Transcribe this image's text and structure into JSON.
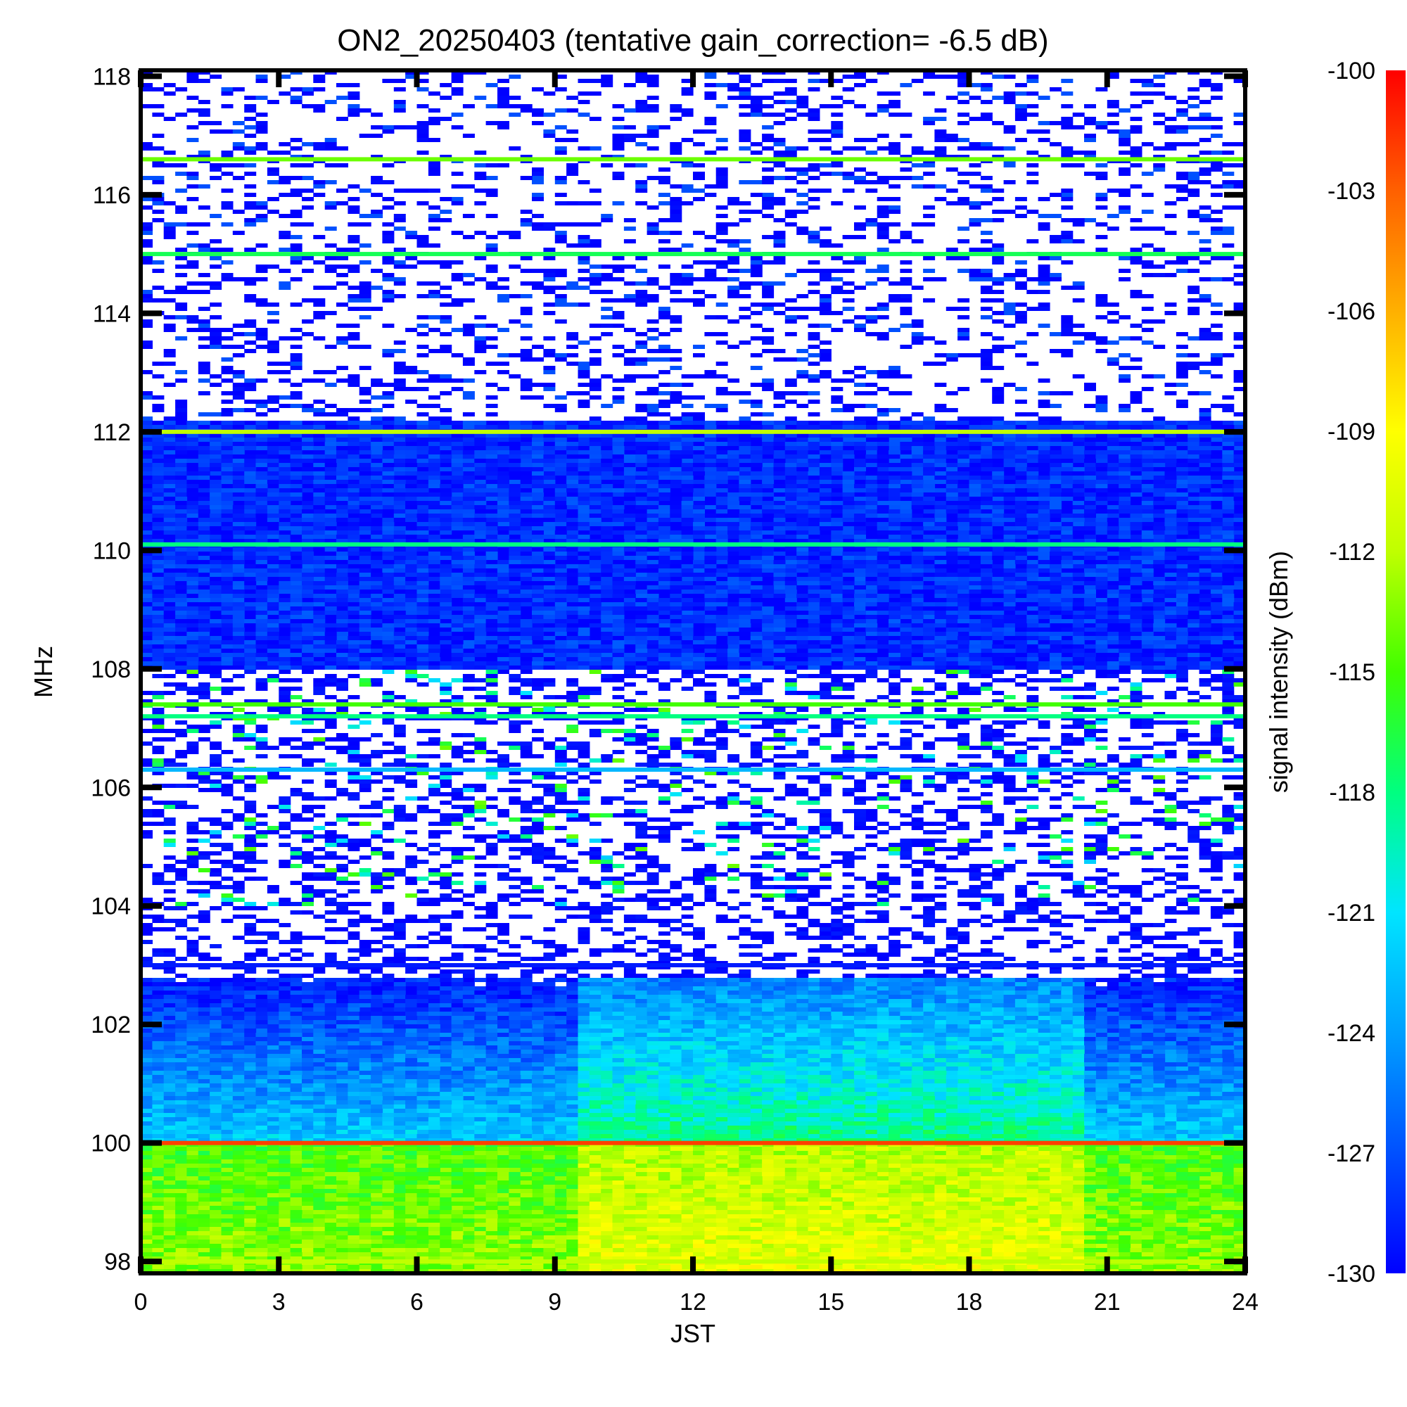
{
  "chart_data": {
    "type": "heatmap",
    "title": "ON2_20250403 (tentative gain_correction= -6.5 dB)",
    "xlabel": "JST",
    "ylabel": "MHz",
    "colorbar_label": "signal intensity (dBm)",
    "xlim": [
      0,
      24
    ],
    "ylim": [
      97.8,
      118.1
    ],
    "x_ticks": [
      "0",
      "3",
      "6",
      "9",
      "12",
      "15",
      "18",
      "21",
      "24"
    ],
    "y_ticks": [
      "98",
      "100",
      "102",
      "104",
      "106",
      "108",
      "110",
      "112",
      "114",
      "116",
      "118"
    ],
    "colorbar_range": [
      -130,
      -100
    ],
    "colorbar_ticks": [
      "-100",
      "-103",
      "-106",
      "-109",
      "-112",
      "-115",
      "-118",
      "-121",
      "-124",
      "-127",
      "-130"
    ],
    "colormap": [
      "#0000ff",
      "#0050ff",
      "#00a0ff",
      "#00e5ff",
      "#00ff80",
      "#40ff00",
      "#c0ff00",
      "#ffff00",
      "#ffb000",
      "#ff6000",
      "#ff0000"
    ],
    "daytime_window_jst": [
      9.4,
      20.5
    ],
    "features": [
      {
        "freq_mhz": 116.6,
        "level_dbm": -114
      },
      {
        "freq_mhz": 115.0,
        "level_dbm": -117
      },
      {
        "freq_mhz": 112.0,
        "level_dbm": -112
      },
      {
        "freq_mhz": 110.1,
        "level_dbm": -118
      },
      {
        "freq_mhz": 107.4,
        "level_dbm": -115
      },
      {
        "freq_mhz": 107.2,
        "level_dbm": -118
      },
      {
        "freq_mhz": 106.3,
        "level_dbm": -123
      },
      {
        "freq_mhz": 103.0,
        "level_dbm": -129
      },
      {
        "freq_mhz": 100.0,
        "level_dbm": -102
      },
      {
        "freq_mhz": 98.0,
        "level_dbm": -112
      }
    ]
  }
}
